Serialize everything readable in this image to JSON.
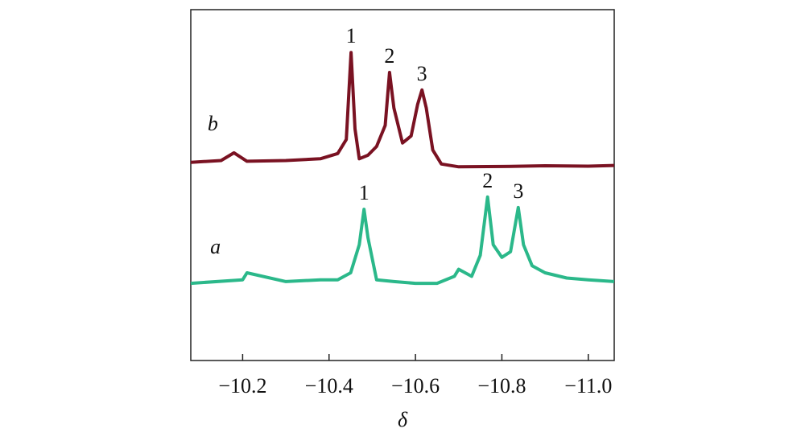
{
  "chart_data": {
    "type": "line",
    "x_label": "δ",
    "xlim": [
      -10.08,
      -11.06
    ],
    "ylim": [
      0,
      100
    ],
    "xticks": [
      {
        "value": -10.2,
        "label": "−10.2"
      },
      {
        "value": -10.4,
        "label": "−10.4"
      },
      {
        "value": -10.6,
        "label": "−10.6"
      },
      {
        "value": -10.8,
        "label": "−10.8"
      },
      {
        "value": -11.0,
        "label": "−11.0"
      }
    ],
    "series": [
      {
        "name": "b",
        "color": "#7a1222",
        "name_pos": [
          -10.131,
          65.6
        ],
        "x": [
          -10.08,
          -10.15,
          -10.18,
          -10.21,
          -10.3,
          -10.38,
          -10.42,
          -10.44,
          -10.451,
          -10.46,
          -10.47,
          -10.49,
          -10.51,
          -10.53,
          -10.54,
          -10.55,
          -10.57,
          -10.59,
          -10.605,
          -10.615,
          -10.625,
          -10.64,
          -10.66,
          -10.7,
          -10.8,
          -10.9,
          -11.0,
          -11.06
        ],
        "values": [
          56.5,
          57,
          59.2,
          56.8,
          57,
          57.5,
          59,
          63,
          87.8,
          66,
          57.5,
          58.5,
          61,
          67,
          82.1,
          72,
          62,
          64,
          73,
          77.1,
          72,
          60,
          56,
          55.2,
          55.3,
          55.5,
          55.4,
          55.6
        ]
      },
      {
        "name": "a",
        "color": "#2bb88a",
        "name_pos": [
          -10.137,
          30.5
        ],
        "x": [
          -10.08,
          -10.2,
          -10.21,
          -10.3,
          -10.38,
          -10.42,
          -10.45,
          -10.47,
          -10.481,
          -10.49,
          -10.51,
          -10.55,
          -10.6,
          -10.65,
          -10.69,
          -10.7,
          -10.73,
          -10.75,
          -10.767,
          -10.78,
          -10.8,
          -10.82,
          -10.838,
          -10.85,
          -10.87,
          -10.9,
          -10.95,
          -11.0,
          -11.06
        ],
        "values": [
          22,
          23,
          25,
          22.5,
          23,
          23,
          25,
          33,
          43.1,
          35,
          23,
          22.5,
          22,
          22,
          24,
          26,
          24,
          30,
          46.6,
          33,
          29.4,
          31,
          43.6,
          33,
          27,
          25,
          23.5,
          23,
          22.5
        ]
      }
    ],
    "annotations": [
      {
        "text": "1",
        "x": -10.451,
        "y": 87.8
      },
      {
        "text": "2",
        "x": -10.54,
        "y": 82.1
      },
      {
        "text": "3",
        "x": -10.615,
        "y": 77.1
      },
      {
        "text": "1",
        "x": -10.481,
        "y": 43.1
      },
      {
        "text": "2",
        "x": -10.767,
        "y": 46.6
      },
      {
        "text": "3",
        "x": -10.838,
        "y": 43.6
      }
    ]
  }
}
